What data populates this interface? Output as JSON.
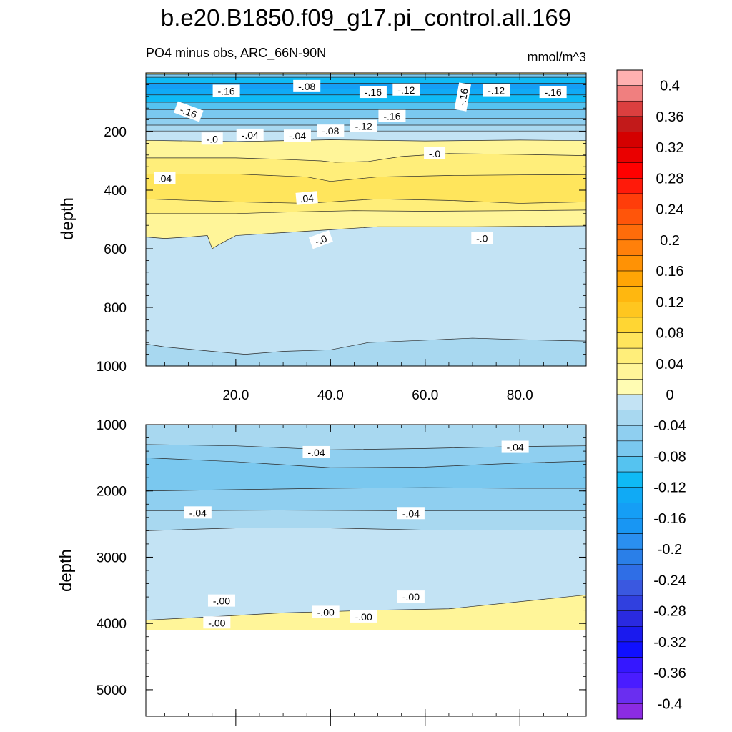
{
  "chart_data": {
    "type": "heatmap",
    "title": "b.e20.B1850.f09_g17.pi_control.all.169",
    "subtitle": "PO4 minus obs, ARC_66N-90N",
    "units": "mmol/m^3",
    "xlim": [
      1,
      94
    ],
    "x_ticks": [
      "20.0",
      "40.0",
      "60.0",
      "80.0"
    ],
    "x_tick_values": [
      20,
      40,
      60,
      80
    ],
    "colorbar": {
      "levels": [
        -0.42,
        -0.4,
        -0.38,
        -0.36,
        -0.34,
        -0.32,
        -0.3,
        -0.28,
        -0.26,
        -0.24,
        -0.22,
        -0.2,
        -0.18,
        -0.16,
        -0.14,
        -0.12,
        -0.1,
        -0.08,
        -0.06,
        -0.04,
        -0.02,
        0,
        0.02,
        0.04,
        0.06,
        0.08,
        0.1,
        0.12,
        0.14,
        0.16,
        0.18,
        0.2,
        0.22,
        0.24,
        0.26,
        0.28,
        0.3,
        0.32,
        0.34,
        0.36,
        0.38,
        0.4,
        0.42
      ],
      "colors": [
        "#8b2be2",
        "#6a2ef0",
        "#4a1cff",
        "#3517ff",
        "#1010ff",
        "#1a1aee",
        "#2a2ae0",
        "#3040df",
        "#3a58e0",
        "#2f6ee6",
        "#2a7fe8",
        "#2a8ff0",
        "#1896f3",
        "#159ef5",
        "#10aaf5",
        "#0fbaf5",
        "#55c3f0",
        "#7ac8ef",
        "#8fcff0",
        "#a8d8f0",
        "#c3e3f4",
        "#fffcb3",
        "#fff599",
        "#ffee7a",
        "#ffe55c",
        "#ffd633",
        "#ffc61f",
        "#ffb70f",
        "#ffa505",
        "#ff9205",
        "#ff800a",
        "#ff6c0a",
        "#ff550a",
        "#ff3d0a",
        "#ff1a0a",
        "#ff0000",
        "#ea0000",
        "#d40000",
        "#c21a1a",
        "#db3f3f",
        "#f07f7f",
        "#ffb0b0"
      ],
      "tick_labels": [
        "0.4",
        "0.36",
        "0.32",
        "0.28",
        "0.24",
        "0.2",
        "0.16",
        "0.12",
        "0.08",
        "0.04",
        "0",
        "-0.04",
        "-0.08",
        "-0.12",
        "-0.16",
        "-0.2",
        "-0.24",
        "-0.28",
        "-0.32",
        "-0.36",
        "-0.4"
      ],
      "tick_values": [
        0.4,
        0.36,
        0.32,
        0.28,
        0.24,
        0.2,
        0.16,
        0.12,
        0.08,
        0.04,
        0,
        -0.04,
        -0.08,
        -0.12,
        -0.16,
        -0.2,
        -0.24,
        -0.28,
        -0.32,
        -0.36,
        -0.4
      ]
    },
    "panels": [
      {
        "name": "upper",
        "ylabel": "depth",
        "ylim": [
          0,
          1000
        ],
        "y_ticks": [
          "200",
          "400",
          "600",
          "800",
          "1000"
        ],
        "y_tick_values": [
          200,
          400,
          600,
          800,
          1000
        ],
        "bands": [
          {
            "top": [
              [
                1,
                0
              ],
              [
                94,
                0
              ]
            ],
            "value": 0.02
          },
          {
            "top": [
              [
                1,
                5
              ],
              [
                94,
                5
              ]
            ],
            "value": -0.08
          },
          {
            "top": [
              [
                1,
                15
              ],
              [
                94,
                15
              ]
            ],
            "value": -0.12
          },
          {
            "top": [
              [
                1,
                35
              ],
              [
                94,
                35
              ]
            ],
            "value": -0.16
          },
          {
            "top": [
              [
                1,
                55
              ],
              [
                94,
                55
              ]
            ],
            "value": -0.14
          },
          {
            "top": [
              [
                1,
                75
              ],
              [
                94,
                75
              ]
            ],
            "value": -0.12
          },
          {
            "top": [
              [
                1,
                100
              ],
              [
                94,
                100
              ]
            ],
            "value": -0.1
          },
          {
            "top": [
              [
                1,
                125
              ],
              [
                94,
                125
              ]
            ],
            "value": -0.08
          },
          {
            "top": [
              [
                1,
                155
              ],
              [
                94,
                155
              ]
            ],
            "value": -0.06
          },
          {
            "top": [
              [
                1,
                178
              ],
              [
                94,
                178
              ]
            ],
            "value": -0.04
          },
          {
            "top": [
              [
                1,
                198
              ],
              [
                94,
                198
              ]
            ],
            "value": -0.02
          },
          {
            "top": [
              [
                1,
                230
              ],
              [
                20,
                234
              ],
              [
                40,
                228
              ],
              [
                60,
                232
              ],
              [
                80,
                229
              ],
              [
                94,
                231
              ]
            ],
            "value": 0.02
          },
          {
            "top": [
              [
                1,
                290
              ],
              [
                20,
                290
              ],
              [
                30,
                295
              ],
              [
                38,
                300
              ],
              [
                41,
                305
              ],
              [
                48,
                302
              ],
              [
                55,
                285
              ],
              [
                65,
                275
              ],
              [
                80,
                278
              ],
              [
                94,
                282
              ]
            ],
            "value": 0.04
          },
          {
            "top": [
              [
                1,
                345
              ],
              [
                20,
                345
              ],
              [
                35,
                355
              ],
              [
                40,
                370
              ],
              [
                50,
                355
              ],
              [
                65,
                350
              ],
              [
                80,
                348
              ],
              [
                94,
                347
              ]
            ],
            "value": 0.06
          },
          {
            "top": [
              [
                1,
                430
              ],
              [
                20,
                440
              ],
              [
                35,
                445
              ],
              [
                50,
                430
              ],
              [
                65,
                435
              ],
              [
                80,
                445
              ],
              [
                94,
                440
              ]
            ],
            "value": 0.04
          },
          {
            "top": [
              [
                1,
                480
              ],
              [
                20,
                480
              ],
              [
                30,
                475
              ],
              [
                45,
                470
              ],
              [
                60,
                472
              ],
              [
                80,
                470
              ],
              [
                94,
                468
              ]
            ],
            "value": 0.02
          },
          {
            "top": [
              [
                1,
                560
              ],
              [
                5,
                565
              ],
              [
                10,
                560
              ],
              [
                14,
                555
              ],
              [
                15,
                600
              ],
              [
                16,
                590
              ],
              [
                20,
                555
              ],
              [
                40,
                535
              ],
              [
                50,
                525
              ],
              [
                70,
                525
              ],
              [
                94,
                522
              ]
            ],
            "value": -0.02
          },
          {
            "top": [
              [
                1,
                925
              ],
              [
                5,
                935
              ],
              [
                15,
                950
              ],
              [
                22,
                960
              ],
              [
                30,
                950
              ],
              [
                40,
                945
              ],
              [
                48,
                920
              ],
              [
                60,
                912
              ],
              [
                70,
                905
              ],
              [
                80,
                910
              ],
              [
                94,
                915
              ]
            ],
            "value": -0.04
          }
        ],
        "labels": [
          {
            "x": 18,
            "y": 62,
            "text": "-.16",
            "angle": 0
          },
          {
            "x": 35,
            "y": 46,
            "text": "-.08",
            "angle": 0
          },
          {
            "x": 49,
            "y": 66,
            "text": "-.16",
            "angle": 0
          },
          {
            "x": 56,
            "y": 58,
            "text": "-.12",
            "angle": 0
          },
          {
            "x": 68,
            "y": 82,
            "text": "-.16",
            "angle": -80
          },
          {
            "x": 75,
            "y": 60,
            "text": "-.12",
            "angle": 0
          },
          {
            "x": 87,
            "y": 66,
            "text": "-.16",
            "angle": 0
          },
          {
            "x": 10,
            "y": 133,
            "text": "-.16",
            "angle": 20
          },
          {
            "x": 53,
            "y": 148,
            "text": "-.16",
            "angle": 0
          },
          {
            "x": 47,
            "y": 182,
            "text": "-.12",
            "angle": 0
          },
          {
            "x": 40,
            "y": 198,
            "text": "-.08",
            "angle": 0
          },
          {
            "x": 23,
            "y": 212,
            "text": "-.04",
            "angle": 0
          },
          {
            "x": 33,
            "y": 215,
            "text": "-.04",
            "angle": 0
          },
          {
            "x": 15,
            "y": 225,
            "text": "-.0",
            "angle": 0
          },
          {
            "x": 62,
            "y": 275,
            "text": "-.0",
            "angle": 0
          },
          {
            "x": 5,
            "y": 360,
            "text": ".04",
            "angle": 0
          },
          {
            "x": 35,
            "y": 428,
            "text": ".04",
            "angle": -5
          },
          {
            "x": 38,
            "y": 570,
            "text": "-.0",
            "angle": -20
          },
          {
            "x": 72,
            "y": 565,
            "text": "-.0",
            "angle": 0
          }
        ]
      },
      {
        "name": "lower",
        "ylabel": "depth",
        "ylim": [
          1000,
          5400
        ],
        "y_ticks": [
          "1000",
          "2000",
          "3000",
          "4000",
          "5000"
        ],
        "y_tick_values": [
          1000,
          2000,
          3000,
          4000,
          5000
        ],
        "bands": [
          {
            "top": [
              [
                1,
                1000
              ],
              [
                94,
                1000
              ]
            ],
            "value": -0.04
          },
          {
            "top": [
              [
                1,
                1300
              ],
              [
                20,
                1320
              ],
              [
                40,
                1380
              ],
              [
                60,
                1360
              ],
              [
                80,
                1330
              ],
              [
                94,
                1320
              ]
            ],
            "value": -0.06
          },
          {
            "top": [
              [
                1,
                1500
              ],
              [
                20,
                1560
              ],
              [
                40,
                1650
              ],
              [
                60,
                1640
              ],
              [
                80,
                1580
              ],
              [
                94,
                1550
              ]
            ],
            "value": -0.08
          },
          {
            "top": [
              [
                1,
                2000
              ],
              [
                20,
                1980
              ],
              [
                40,
                1960
              ],
              [
                60,
                1950
              ],
              [
                80,
                1960
              ],
              [
                94,
                1960
              ]
            ],
            "value": -0.06
          },
          {
            "top": [
              [
                1,
                2300
              ],
              [
                30,
                2290
              ],
              [
                60,
                2300
              ],
              [
                94,
                2300
              ]
            ],
            "value": -0.04
          },
          {
            "top": [
              [
                1,
                2600
              ],
              [
                20,
                2560
              ],
              [
                40,
                2560
              ],
              [
                60,
                2590
              ],
              [
                94,
                2590
              ]
            ],
            "value": -0.02
          },
          {
            "top": [
              [
                1,
                3950
              ],
              [
                15,
                3900
              ],
              [
                30,
                3840
              ],
              [
                50,
                3800
              ],
              [
                65,
                3780
              ],
              [
                94,
                3570
              ]
            ],
            "value": 0.02
          },
          {
            "top": [
              [
                1,
                4100
              ],
              [
                94,
                4100
              ]
            ],
            "value": null
          }
        ],
        "labels": [
          {
            "x": 37,
            "y": 1420,
            "text": "-.04",
            "angle": 0
          },
          {
            "x": 79,
            "y": 1340,
            "text": "-.04",
            "angle": 0
          },
          {
            "x": 12,
            "y": 2330,
            "text": "-.04",
            "angle": 0
          },
          {
            "x": 57,
            "y": 2340,
            "text": "-.04",
            "angle": 0
          },
          {
            "x": 17,
            "y": 3660,
            "text": "-.00",
            "angle": 0
          },
          {
            "x": 57,
            "y": 3600,
            "text": "-.00",
            "angle": 0
          },
          {
            "x": 39,
            "y": 3830,
            "text": "-.00",
            "angle": 0
          },
          {
            "x": 47,
            "y": 3900,
            "text": "-.00",
            "angle": 0
          },
          {
            "x": 16,
            "y": 3990,
            "text": "-.00",
            "angle": 0
          }
        ]
      }
    ]
  }
}
